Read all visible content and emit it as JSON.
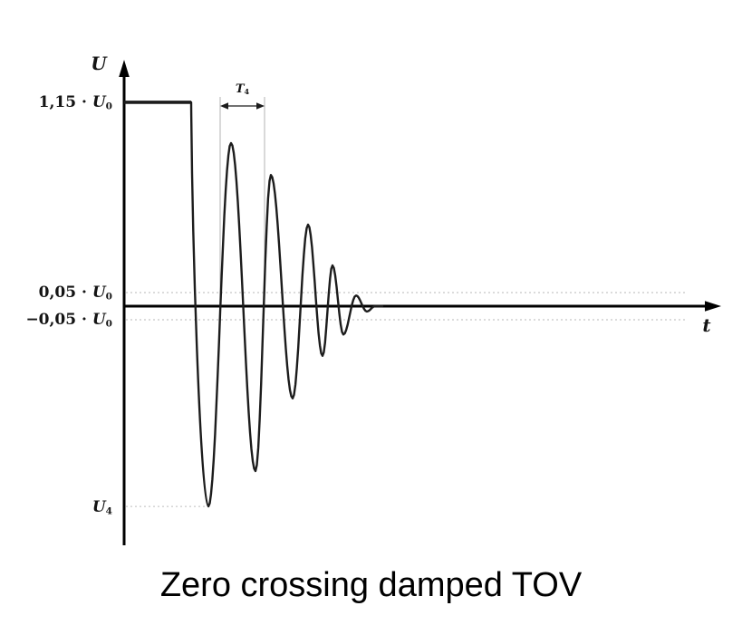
{
  "caption": "Zero crossing damped TOV",
  "axes": {
    "y_label": "U",
    "x_label": "t"
  },
  "labels": {
    "flat": {
      "pre": "1,15 · ",
      "var": "U",
      "sub": "0"
    },
    "upper": {
      "pre": "0,05 · ",
      "var": "U",
      "sub": "0"
    },
    "lower": {
      "pre": "−0,05 · ",
      "var": "U",
      "sub": "0"
    },
    "u4": {
      "pre": "",
      "var": "U",
      "sub": "4"
    },
    "period": {
      "var": "T",
      "sub": "4"
    }
  },
  "colors": {
    "curve": "#1c1c1c",
    "axis": "#000000",
    "guide": "#cfcfcf",
    "marker_line": "#b3b3b3",
    "caption": "#000000"
  },
  "chart_data": {
    "type": "line",
    "title": "Zero crossing damped TOV",
    "xlabel": "t",
    "ylabel": "U",
    "description": "Temporary overvoltage (TOV) waveform: constant level 1.15·U0, then a zero-crossing damped oscillation decaying to zero. Dotted guides mark +0.05·U0, −0.05·U0 and the deepest trough U4. T4 marks one oscillation period.",
    "y_unit": "U0",
    "levels": {
      "flat": 1.15,
      "upper_guide": 0.05,
      "lower_guide": -0.05,
      "u4_guide": -1.13
    },
    "flat_segment_t": [
      0,
      74
    ],
    "extrema": [
      [
        93,
        -1.13
      ],
      [
        118,
        0.92
      ],
      [
        145,
        -0.93
      ],
      [
        162,
        0.74
      ],
      [
        186,
        -0.52
      ],
      [
        203,
        0.46
      ],
      [
        219,
        -0.28
      ],
      [
        230,
        0.23
      ],
      [
        242,
        -0.16
      ],
      [
        256,
        0.06
      ],
      [
        268,
        -0.03
      ]
    ],
    "settle_t": 277,
    "period_marker_t": [
      106,
      155
    ],
    "guide_end_t": 620,
    "u4_guide_end_t": 91,
    "grid": false,
    "legend": false
  }
}
